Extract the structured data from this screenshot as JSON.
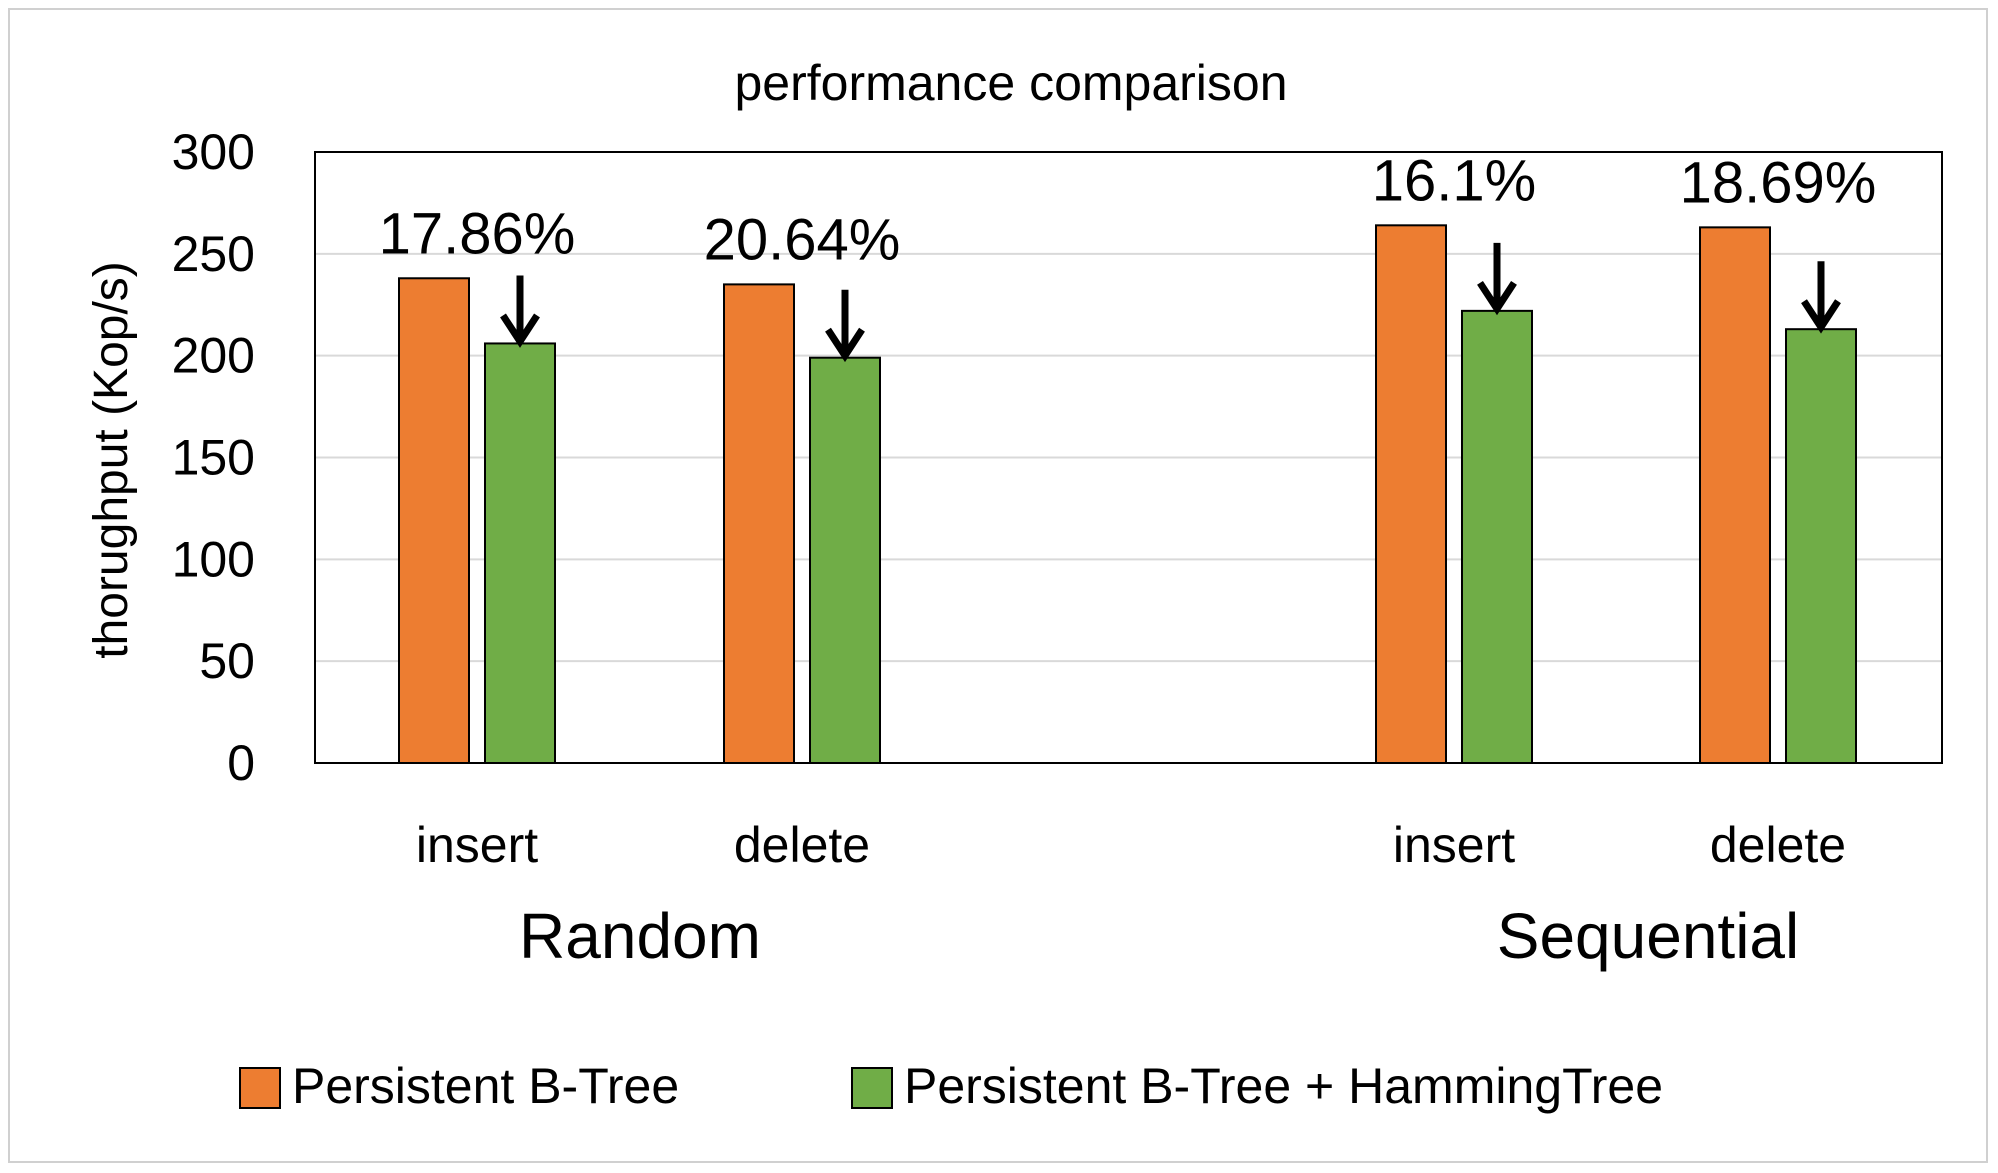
{
  "chart_data": {
    "type": "bar",
    "title": "performance comparison",
    "ylabel": "thorughput (Kop/s)",
    "ylim": [
      0,
      300
    ],
    "yticks": [
      0,
      50,
      100,
      150,
      200,
      250,
      300
    ],
    "grid": true,
    "legend_position": "bottom",
    "groups": [
      {
        "name": "Random",
        "categories": [
          {
            "label": "insert",
            "values": [
              238,
              206
            ],
            "annotation": "17.86%"
          },
          {
            "label": "delete",
            "values": [
              235,
              199
            ],
            "annotation": "20.64%"
          }
        ]
      },
      {
        "name": "Sequential",
        "categories": [
          {
            "label": "insert",
            "values": [
              264,
              222
            ],
            "annotation": "16.1%"
          },
          {
            "label": "delete",
            "values": [
              263,
              213
            ],
            "annotation": "18.69%"
          }
        ]
      }
    ],
    "series": [
      {
        "name": "Persistent B-Tree",
        "color": "#ED7D31"
      },
      {
        "name": "Persistent B-Tree + HammingTree",
        "color": "#70AD47"
      }
    ]
  }
}
